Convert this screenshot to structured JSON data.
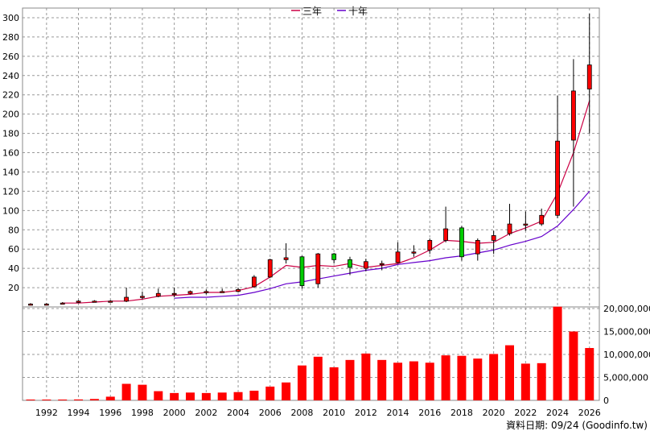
{
  "chart_data": {
    "type": "candlestick+bar",
    "legend": [
      {
        "label": "三年",
        "color": "#cc0044"
      },
      {
        "label": "十年",
        "color": "#6600cc"
      }
    ],
    "credit": "資料日期: 09/24  (Goodinfo.tw)",
    "price_axis": {
      "ylim": [
        0,
        310
      ],
      "ticks": [
        20,
        40,
        60,
        80,
        100,
        120,
        140,
        160,
        180,
        200,
        220,
        240,
        260,
        280,
        300
      ]
    },
    "volume_axis": {
      "ylim": [
        0,
        20000000
      ],
      "ticks": [
        0,
        5000000,
        10000000,
        15000000,
        20000000
      ],
      "tick_labels": [
        "0",
        "5,000,000",
        "10,000,000",
        "15,000,000",
        "20,000,000"
      ]
    },
    "x_tick_labels": [
      "1992",
      "1994",
      "1996",
      "1998",
      "2000",
      "2002",
      "2004",
      "2006",
      "2008",
      "2010",
      "2012",
      "2014",
      "2016",
      "2018",
      "2020",
      "2022",
      "2024",
      "2026"
    ],
    "years": [
      1991,
      1992,
      1993,
      1994,
      1995,
      1996,
      1997,
      1998,
      1999,
      2000,
      2001,
      2002,
      2003,
      2004,
      2005,
      2006,
      2007,
      2008,
      2009,
      2010,
      2011,
      2012,
      2013,
      2014,
      2015,
      2016,
      2017,
      2018,
      2019,
      2020,
      2021,
      2022,
      2023,
      2024,
      2025,
      2026
    ],
    "candles": [
      {
        "o": 3,
        "c": 3,
        "h": 4,
        "l": 3
      },
      {
        "o": 3,
        "c": 3,
        "h": 4,
        "l": 3
      },
      {
        "o": 4,
        "c": 4,
        "h": 5,
        "l": 3
      },
      {
        "o": 5,
        "c": 6,
        "h": 7,
        "l": 4
      },
      {
        "o": 6,
        "c": 6,
        "h": 7,
        "l": 5
      },
      {
        "o": 6,
        "c": 6,
        "h": 7,
        "l": 5
      },
      {
        "o": 6,
        "c": 10,
        "h": 20,
        "l": 5
      },
      {
        "o": 10,
        "c": 11,
        "h": 16,
        "l": 8
      },
      {
        "o": 11,
        "c": 14,
        "h": 19,
        "l": 10
      },
      {
        "o": 14,
        "c": 14,
        "h": 20,
        "l": 10
      },
      {
        "o": 14,
        "c": 16,
        "h": 17,
        "l": 13
      },
      {
        "o": 15,
        "c": 16,
        "h": 18,
        "l": 13
      },
      {
        "o": 16,
        "c": 16,
        "h": 19,
        "l": 15
      },
      {
        "o": 16,
        "c": 18,
        "h": 20,
        "l": 15
      },
      {
        "o": 21,
        "c": 31,
        "h": 33,
        "l": 20
      },
      {
        "o": 31,
        "c": 49,
        "h": 50,
        "l": 30
      },
      {
        "o": 49,
        "c": 51,
        "h": 66,
        "l": 45
      },
      {
        "o": 52,
        "c": 22,
        "h": 53,
        "l": 19
      },
      {
        "o": 24,
        "c": 55,
        "h": 56,
        "l": 20
      },
      {
        "o": 55,
        "c": 49,
        "h": 56,
        "l": 45
      },
      {
        "o": 49,
        "c": 41,
        "h": 52,
        "l": 33
      },
      {
        "o": 40,
        "c": 47,
        "h": 50,
        "l": 37
      },
      {
        "o": 45,
        "c": 45,
        "h": 48,
        "l": 38
      },
      {
        "o": 46,
        "c": 57,
        "h": 67,
        "l": 45
      },
      {
        "o": 57,
        "c": 57,
        "h": 64,
        "l": 52
      },
      {
        "o": 59,
        "c": 69,
        "h": 71,
        "l": 55
      },
      {
        "o": 69,
        "c": 81,
        "h": 104,
        "l": 67
      },
      {
        "o": 82,
        "c": 52,
        "h": 84,
        "l": 48
      },
      {
        "o": 55,
        "c": 69,
        "h": 71,
        "l": 48
      },
      {
        "o": 69,
        "c": 74,
        "h": 79,
        "l": 55
      },
      {
        "o": 76,
        "c": 86,
        "h": 107,
        "l": 74
      },
      {
        "o": 86,
        "c": 86,
        "h": 99,
        "l": 79
      },
      {
        "o": 86,
        "c": 95,
        "h": 102,
        "l": 84
      },
      {
        "o": 95,
        "c": 172,
        "h": 219,
        "l": 92
      },
      {
        "o": 173,
        "c": 224,
        "h": 257,
        "l": 104
      },
      {
        "o": 226,
        "c": 251,
        "h": 304,
        "l": 180
      }
    ],
    "ma3": [
      null,
      null,
      4,
      4,
      5,
      6,
      6,
      8,
      11,
      12,
      13,
      15,
      15,
      17,
      21,
      31,
      43,
      41,
      43,
      42,
      45,
      41,
      43,
      45,
      51,
      59,
      69,
      68,
      66,
      67,
      76,
      82,
      89,
      118,
      160,
      214
    ],
    "ma10": [
      null,
      null,
      null,
      null,
      null,
      null,
      null,
      null,
      null,
      9,
      10,
      10,
      11,
      12,
      15,
      19,
      24,
      26,
      29,
      32,
      35,
      38,
      40,
      44,
      46,
      48,
      51,
      53,
      56,
      59,
      64,
      68,
      73,
      84,
      101,
      120
    ],
    "volumes": [
      50000,
      50000,
      80000,
      200000,
      300000,
      800000,
      3600000,
      3400000,
      2000000,
      1600000,
      1700000,
      1600000,
      1700000,
      1800000,
      2100000,
      3000000,
      3900000,
      7600000,
      9500000,
      7200000,
      8800000,
      10200000,
      8800000,
      8200000,
      8500000,
      8200000,
      9800000,
      9700000,
      9100000,
      10100000,
      12000000,
      8000000,
      8100000,
      20400000,
      15000000,
      11400000
    ]
  }
}
